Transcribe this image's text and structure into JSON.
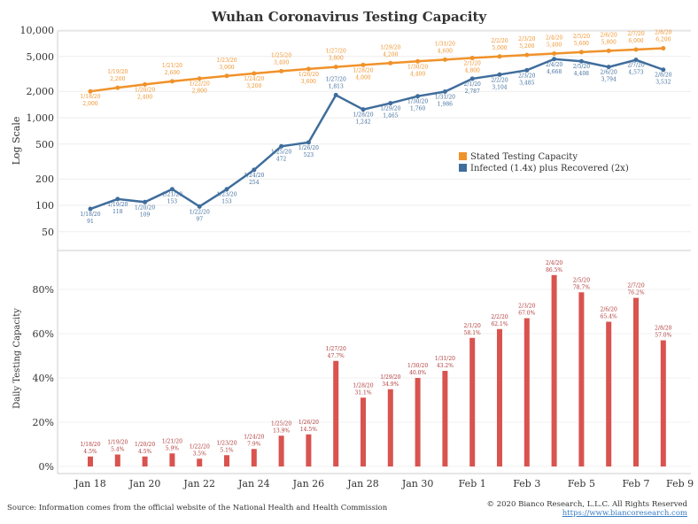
{
  "title": "Wuhan Coronavirus Testing Capacity",
  "footer": {
    "source": "Source: Information comes from the official website of the National Health and Health Commission",
    "copyright": "© 2020 Bianco Research, L.L.C. All Rights Reserved",
    "url": "https://www.biancoresearch.com"
  },
  "chart_data": [
    {
      "type": "line",
      "ylabel": "Log Scale",
      "yscale": "log",
      "yticks": [
        "10,000",
        "5,000",
        "2,000",
        "1,000",
        "500",
        "200",
        "100",
        "50"
      ],
      "ytick_values": [
        10000,
        5000,
        2000,
        1000,
        500,
        200,
        100,
        50
      ],
      "grid": true,
      "legend": "center-right",
      "x": [
        "1/18/20",
        "1/19/20",
        "1/20/20",
        "1/21/20",
        "1/22/20",
        "1/23/20",
        "1/24/20",
        "1/25/20",
        "1/26/20",
        "1/27/20",
        "1/28/20",
        "1/29/20",
        "1/30/20",
        "1/31/20",
        "2/1/20",
        "2/2/20",
        "2/3/20",
        "2/4/20",
        "2/5/20",
        "2/6/20",
        "2/7/20",
        "2/8/20"
      ],
      "series": [
        {
          "name": "Stated Testing Capacity",
          "color": "#f0922a",
          "values": [
            2000,
            2200,
            2400,
            2600,
            2800,
            3000,
            3200,
            3400,
            3600,
            3800,
            4000,
            4200,
            4400,
            4600,
            4800,
            5000,
            5200,
            5400,
            5600,
            5800,
            6000,
            6200
          ],
          "labels": [
            "2,000",
            "2,200",
            "2,400",
            "2,600",
            "2,800",
            "3,000",
            "3,200",
            "3,400",
            "3,600",
            "3,800",
            "4,000",
            "4,200",
            "4,400",
            "4,600",
            "4,800",
            "5,000",
            "5,200",
            "5,400",
            "5,600",
            "5,800",
            "6,000",
            "6,200"
          ]
        },
        {
          "name": "Infected (1.4x) plus Recovered (2x)",
          "color": "#3f6d9c",
          "values": [
            91,
            118,
            109,
            153,
            97,
            153,
            254,
            472,
            523,
            1813,
            1242,
            1465,
            1760,
            1986,
            2787,
            3104,
            3485,
            4668,
            4408,
            3794,
            4573,
            3532
          ],
          "labels": [
            "91",
            "118",
            "109",
            "153",
            "97",
            "153",
            "254",
            "472",
            "523",
            "1,813",
            "1,242",
            "1,465",
            "1,760",
            "1,986",
            "2,787",
            "3,104",
            "3,485",
            "4,668",
            "4,408",
            "3,794",
            "4,573",
            "3,532"
          ]
        }
      ]
    },
    {
      "type": "bar",
      "ylabel": "Daily Testing Capacity",
      "color": "#d9534f",
      "yticks": [
        "0%",
        "20%",
        "40%",
        "60%",
        "80%"
      ],
      "ytick_values": [
        0,
        20,
        40,
        60,
        80
      ],
      "grid": true,
      "categories": [
        "1/18/20",
        "1/19/20",
        "1/20/20",
        "1/21/20",
        "1/22/20",
        "1/23/20",
        "1/24/20",
        "1/25/20",
        "1/26/20",
        "1/27/20",
        "1/28/20",
        "1/29/20",
        "1/30/20",
        "1/31/20",
        "2/1/20",
        "2/2/20",
        "2/3/20",
        "2/4/20",
        "2/5/20",
        "2/6/20",
        "2/7/20",
        "2/8/20"
      ],
      "values": [
        4.5,
        5.4,
        4.5,
        5.9,
        3.5,
        5.1,
        7.9,
        13.9,
        14.5,
        47.7,
        31.1,
        34.9,
        40.0,
        43.2,
        58.1,
        62.1,
        67.0,
        86.5,
        78.7,
        65.4,
        76.2,
        57.0
      ],
      "labels": [
        "4.5%",
        "5.4%",
        "4.5%",
        "5.9%",
        "3.5%",
        "5.1%",
        "7.9%",
        "13.9%",
        "14.5%",
        "47.7%",
        "31.1%",
        "34.9%",
        "40.0%",
        "43.2%",
        "58.1%",
        "62.1%",
        "67.0%",
        "86.5%",
        "78.7%",
        "65.4%",
        "76.2%",
        "57.0%"
      ],
      "xticks": [
        "Jan 18",
        "Jan 20",
        "Jan 22",
        "Jan 24",
        "Jan 26",
        "Jan 28",
        "Jan 30",
        "Feb 1",
        "Feb 3",
        "Feb 5",
        "Feb 7",
        "Feb 9"
      ]
    }
  ]
}
